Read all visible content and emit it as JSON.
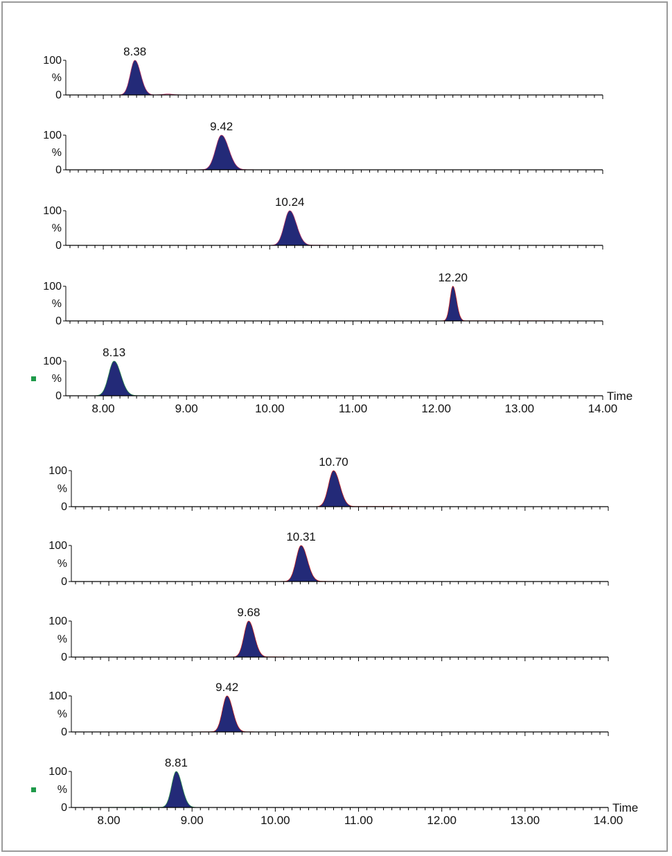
{
  "chart_data": [
    {
      "type": "area",
      "title": "",
      "xlabel": "Time",
      "ylabel": "%",
      "xlim": [
        7.55,
        14.0
      ],
      "ylim": [
        0,
        100
      ],
      "x_ticks": [
        "8.00",
        "9.00",
        "10.00",
        "11.00",
        "12.00",
        "13.00",
        "14.00"
      ],
      "y_ticks": [
        "100",
        "%",
        "0"
      ],
      "grid": false,
      "peak_fill_color": "#232a78",
      "baseline_color": "#000000",
      "panels": [
        {
          "peak_label": "8.38",
          "peak_x": 8.38,
          "peak_y": 100,
          "width": 0.055,
          "trace_color": "#b03060",
          "tail": [
            [
              8.6,
              8.95,
              4
            ]
          ],
          "marker": false
        },
        {
          "peak_label": "9.42",
          "peak_x": 9.42,
          "peak_y": 100,
          "width": 0.07,
          "trace_color": "#b03060",
          "tail": [
            [
              9.05,
              9.9,
              2
            ]
          ],
          "marker": false
        },
        {
          "peak_label": "10.24",
          "peak_x": 10.24,
          "peak_y": 100,
          "width": 0.065,
          "trace_color": "#b03060",
          "tail": [
            [
              10.0,
              10.9,
              1
            ]
          ],
          "marker": false
        },
        {
          "peak_label": "12.20",
          "peak_x": 12.2,
          "peak_y": 100,
          "width": 0.035,
          "trace_color": "#c02020",
          "tail": [
            [
              11.45,
              14.0,
              0.5
            ]
          ],
          "marker": false
        },
        {
          "peak_label": "8.13",
          "peak_x": 8.13,
          "peak_y": 100,
          "width": 0.065,
          "trace_color": "#2a8a4a",
          "tail": [
            [
              7.6,
              8.95,
              0.5
            ]
          ],
          "marker": true,
          "marker_color": "#1f9a4a"
        }
      ]
    },
    {
      "type": "area",
      "title": "",
      "xlabel": "Time",
      "ylabel": "%",
      "xlim": [
        7.55,
        14.0
      ],
      "ylim": [
        0,
        100
      ],
      "x_ticks": [
        "8.00",
        "9.00",
        "10.00",
        "11.00",
        "12.00",
        "13.00",
        "14.00"
      ],
      "y_ticks": [
        "100",
        "%",
        "0"
      ],
      "grid": false,
      "peak_fill_color": "#232a78",
      "baseline_color": "#000000",
      "panels": [
        {
          "peak_label": "10.70",
          "peak_x": 10.7,
          "peak_y": 100,
          "width": 0.06,
          "trace_color": "#c02020",
          "tail": [
            [
              10.3,
              11.9,
              1
            ]
          ],
          "marker": false
        },
        {
          "peak_label": "10.31",
          "peak_x": 10.31,
          "peak_y": 100,
          "width": 0.06,
          "trace_color": "#c02020",
          "tail": [
            [
              9.9,
              10.9,
              1
            ]
          ],
          "marker": false
        },
        {
          "peak_label": "9.68",
          "peak_x": 9.68,
          "peak_y": 100,
          "width": 0.055,
          "trace_color": "#c02020",
          "tail": [
            [
              9.3,
              10.3,
              1
            ]
          ],
          "marker": false
        },
        {
          "peak_label": "9.42",
          "peak_x": 9.42,
          "peak_y": 100,
          "width": 0.055,
          "trace_color": "#c02020",
          "tail": [
            [
              8.95,
              9.9,
              1
            ]
          ],
          "marker": false
        },
        {
          "peak_label": "8.81",
          "peak_x": 8.81,
          "peak_y": 100,
          "width": 0.055,
          "trace_color": "#2a8a4a",
          "tail": [
            [
              7.6,
              9.25,
              0.5
            ]
          ],
          "marker": true,
          "marker_color": "#1f9a4a"
        }
      ]
    }
  ]
}
